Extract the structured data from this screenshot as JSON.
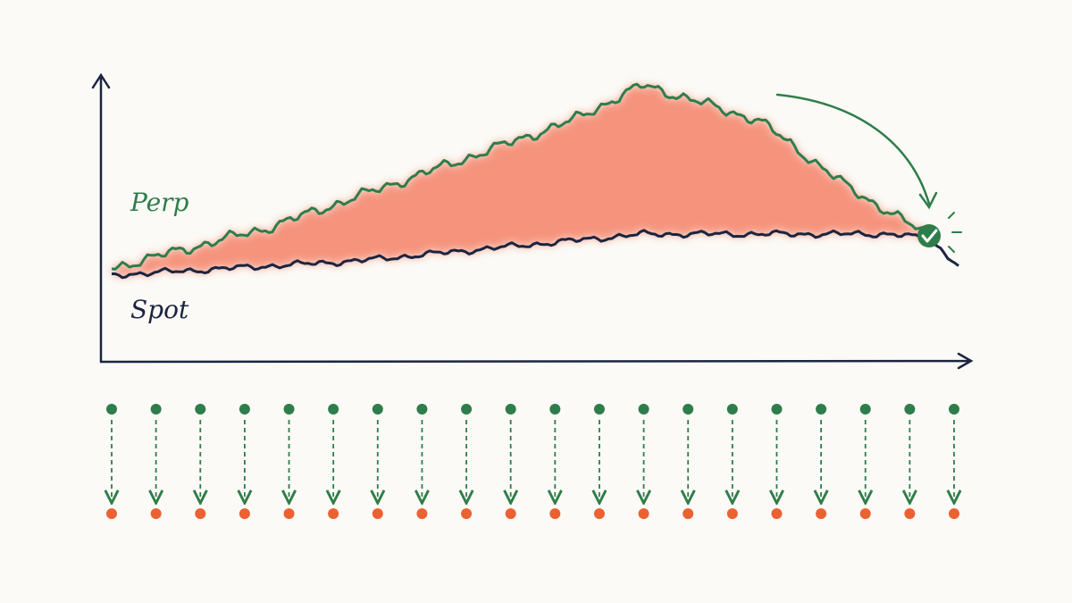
{
  "series_labels": [
    "Perp",
    "Spot"
  ]
}
